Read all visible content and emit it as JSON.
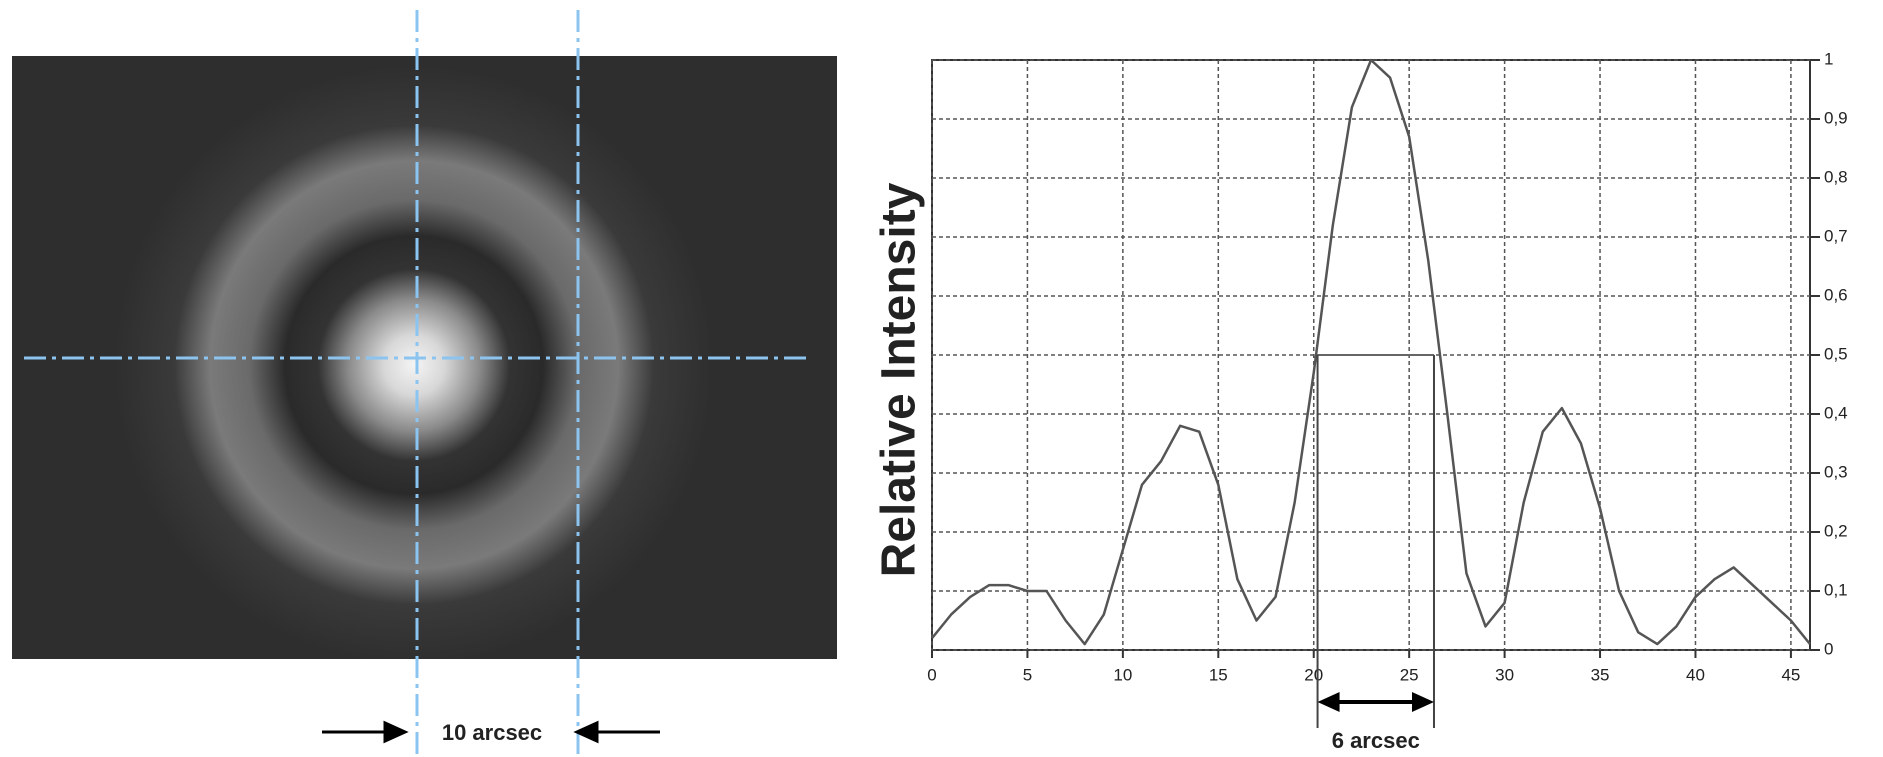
{
  "image": {
    "label": "10 arcsec"
  },
  "chart_data": {
    "type": "line",
    "y_label": "Relative Intensity",
    "x": [
      0,
      1,
      2,
      3,
      4,
      5,
      6,
      7,
      8,
      9,
      10,
      11,
      12,
      13,
      14,
      15,
      16,
      17,
      18,
      19,
      20,
      21,
      22,
      23,
      24,
      25,
      26,
      27,
      28,
      29,
      30,
      31,
      32,
      33,
      34,
      35,
      36,
      37,
      38,
      39,
      40,
      41,
      42,
      43,
      44,
      45,
      46
    ],
    "series": [
      {
        "color": "#555555",
        "values": [
          0.02,
          0.06,
          0.09,
          0.11,
          0.11,
          0.1,
          0.1,
          0.05,
          0.01,
          0.06,
          0.17,
          0.28,
          0.32,
          0.38,
          0.37,
          0.28,
          0.12,
          0.05,
          0.09,
          0.25,
          0.47,
          0.72,
          0.92,
          1.0,
          0.97,
          0.87,
          0.66,
          0.4,
          0.13,
          0.04,
          0.08,
          0.25,
          0.37,
          0.41,
          0.35,
          0.24,
          0.1,
          0.03,
          0.01,
          0.04,
          0.09,
          0.12,
          0.14,
          0.11,
          0.08,
          0.05,
          0.01
        ]
      }
    ],
    "xlim": [
      0,
      46
    ],
    "xticks": [
      0,
      5,
      10,
      15,
      20,
      25,
      30,
      35,
      40,
      45
    ],
    "ylim": [
      0,
      1
    ],
    "yticks": [
      0,
      {
        "value": 0.1,
        "label": "0,1"
      },
      {
        "value": 0.2,
        "label": "0,2"
      },
      {
        "value": 0.3,
        "label": "0,3"
      },
      {
        "value": 0.4,
        "label": "0,4"
      },
      {
        "value": 0.5,
        "label": "0,5"
      },
      {
        "value": 0.6,
        "label": "0,6"
      },
      {
        "value": 0.7,
        "label": "0,7"
      },
      {
        "value": 0.8,
        "label": "0,8"
      },
      {
        "value": 0.9,
        "label": "0,9"
      },
      1
    ],
    "grid": true,
    "half_max": {
      "y": 0.5,
      "x": [
        20.2,
        26.3
      ],
      "label": "6 arcsec"
    }
  }
}
